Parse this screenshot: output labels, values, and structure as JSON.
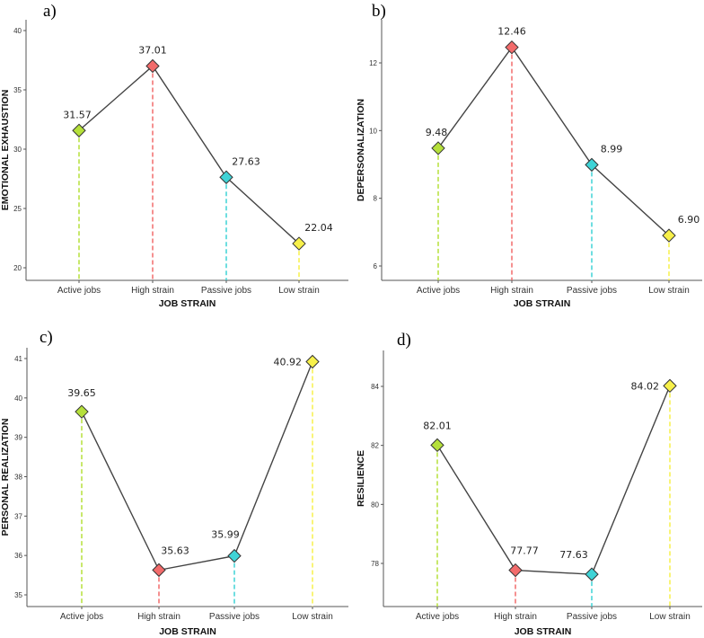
{
  "chart_data": [
    {
      "type": "line",
      "panel": "a)",
      "xlabel": "JOB STRAIN",
      "ylabel": "EMOTIONAL EXHAUSTION",
      "categories": [
        "Active jobs",
        "High strain",
        "Passive jobs",
        "Low strain"
      ],
      "values": [
        31.57,
        37.01,
        27.63,
        22.04
      ],
      "labels": [
        "31.57",
        "37.01",
        "27.63",
        "22.04"
      ],
      "yticks": [
        20,
        25,
        30,
        35,
        40
      ],
      "ylim": [
        18.9,
        40.9
      ]
    },
    {
      "type": "line",
      "panel": "b)",
      "xlabel": "JOB STRAIN",
      "ylabel": "DEPERSONALIZATION",
      "categories": [
        "Active jobs",
        "High strain",
        "Passive jobs",
        "Low strain"
      ],
      "values": [
        9.48,
        12.46,
        8.99,
        6.9
      ],
      "labels": [
        "9.48",
        "12.46",
        "8.99",
        "6.90"
      ],
      "yticks": [
        6,
        8,
        10,
        12
      ],
      "ylim": [
        5.6,
        13.3
      ]
    },
    {
      "type": "line",
      "panel": "c)",
      "xlabel": "JOB STRAIN",
      "ylabel": "PERSONAL REALIZATION",
      "categories": [
        "Active jobs",
        "High strain",
        "Passive jobs",
        "Low strain"
      ],
      "values": [
        39.65,
        35.63,
        35.99,
        40.92
      ],
      "labels": [
        "39.65",
        "35.63",
        "35.99",
        "40.92"
      ],
      "yticks": [
        35,
        36,
        37,
        38,
        39,
        40,
        41
      ],
      "ylim": [
        34.7,
        41.2
      ]
    },
    {
      "type": "line",
      "panel": "d)",
      "xlabel": "JOB STRAIN",
      "ylabel": "RESILIENCE",
      "categories": [
        "Active jobs",
        "High strain",
        "Passive jobs",
        "Low strain"
      ],
      "values": [
        82.01,
        77.77,
        77.63,
        84.02
      ],
      "labels": [
        "82.01",
        "77.77",
        "77.63",
        "84.02"
      ],
      "yticks": [
        78,
        80,
        82,
        84
      ],
      "ylim": [
        76.5,
        85.2
      ]
    }
  ],
  "colors": {
    "markers": [
      "#b5e03a",
      "#f26b6b",
      "#3fd3d6",
      "#f7f04a"
    ],
    "line": "#444444",
    "axis": "#555555"
  }
}
